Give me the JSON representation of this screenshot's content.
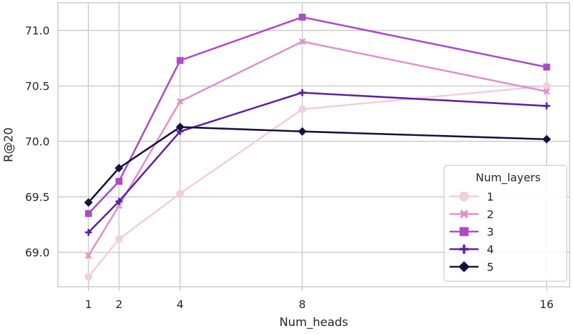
{
  "chart_data": {
    "type": "line",
    "title": "",
    "xlabel": "Num_heads",
    "ylabel": "R@20",
    "x": [
      1,
      2,
      4,
      8,
      16
    ],
    "x_ticks": [
      "1",
      "2",
      "4",
      "8",
      "16"
    ],
    "y_ticks": [
      "69.0",
      "69.5",
      "70.0",
      "70.5",
      "71.0"
    ],
    "xlim": [
      0,
      16.75
    ],
    "ylim": [
      68.69,
      71.25
    ],
    "grid": true,
    "legend": {
      "title": "Num_layers",
      "placement": "lower-right"
    },
    "series": [
      {
        "name": "1",
        "marker": "circle",
        "color": "#f2cede",
        "values": [
          68.78,
          69.12,
          69.53,
          70.29,
          70.5
        ]
      },
      {
        "name": "2",
        "marker": "x",
        "color": "#dd92cc",
        "values": [
          68.97,
          69.42,
          70.36,
          70.9,
          70.45
        ]
      },
      {
        "name": "3",
        "marker": "square",
        "color": "#ad4ac6",
        "values": [
          69.35,
          69.64,
          70.73,
          71.12,
          70.67
        ]
      },
      {
        "name": "4",
        "marker": "plus",
        "color": "#5e20a0",
        "values": [
          69.18,
          69.46,
          70.09,
          70.44,
          70.32
        ]
      },
      {
        "name": "5",
        "marker": "diamond",
        "color": "#180f3d",
        "values": [
          69.45,
          69.76,
          70.13,
          70.09,
          70.02
        ]
      }
    ]
  }
}
